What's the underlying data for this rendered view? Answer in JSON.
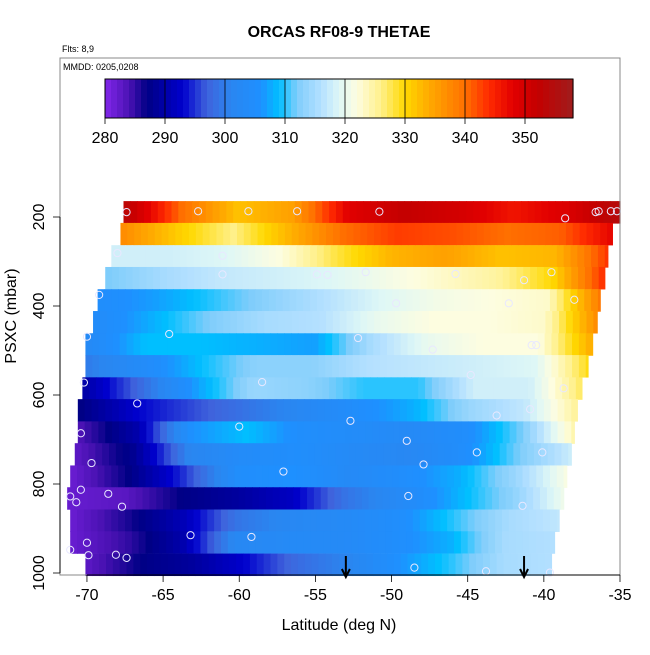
{
  "chart_data": {
    "type": "heatmap",
    "title": "ORCAS RF08-9 THETAE",
    "subtitle_flights": "Flts: 8,9",
    "subtitle_dates": "MMDD: 0205,0208",
    "xlabel": "Latitude (deg N)",
    "ylabel": "PSXC (mbar)",
    "xlim": [
      -71.8,
      -35
    ],
    "ylim": [
      1005,
      -157
    ],
    "x_ticks": [
      "-70",
      "-65",
      "-60",
      "-55",
      "-50",
      "-45",
      "-40",
      "-35"
    ],
    "x_tick_values": [
      -70,
      -65,
      -60,
      -55,
      -50,
      -45,
      -40,
      -35
    ],
    "y_ticks": [
      "200",
      "400",
      "600",
      "800",
      "1000"
    ],
    "y_tick_values": [
      200,
      400,
      600,
      800,
      1000
    ],
    "colorbar": {
      "range": [
        280,
        358
      ],
      "ticks": [
        "280",
        "290",
        "300",
        "310",
        "320",
        "330",
        "340",
        "350"
      ],
      "tick_values": [
        280,
        290,
        300,
        310,
        320,
        330,
        340,
        350
      ],
      "stops": [
        [
          280,
          "#8226ea"
        ],
        [
          284,
          "#4b12b4"
        ],
        [
          287,
          "#000085"
        ],
        [
          293,
          "#0000cd"
        ],
        [
          297,
          "#3f63dc"
        ],
        [
          301,
          "#2a86f0"
        ],
        [
          306,
          "#1e90ff"
        ],
        [
          309,
          "#00bfff"
        ],
        [
          312,
          "#7fcdfb"
        ],
        [
          316,
          "#b4e0ff"
        ],
        [
          319,
          "#def7f6"
        ],
        [
          322,
          "#fdfde0"
        ],
        [
          326,
          "#fff08a"
        ],
        [
          330,
          "#ffd800"
        ],
        [
          334,
          "#ffaa00"
        ],
        [
          340,
          "#ff7000"
        ],
        [
          344,
          "#ff2a00"
        ],
        [
          348,
          "#e20000"
        ],
        [
          352,
          "#c40000"
        ],
        [
          358,
          "#a01c1c"
        ]
      ]
    },
    "layer_thickness_mbar": 49.4,
    "rows": [
      {
        "p": 189,
        "lat": [
          -67.6,
          -35.0
        ],
        "theta": [
          353,
          340,
          332,
          335,
          348,
          352,
          350,
          346,
          349,
          355
        ]
      },
      {
        "p": 238,
        "lat": [
          -67.8,
          -35.5
        ],
        "theta": [
          337,
          331,
          326,
          333,
          340,
          343,
          342,
          340,
          341,
          348
        ]
      },
      {
        "p": 288,
        "lat": [
          -68.4,
          -35.8
        ],
        "theta": [
          318,
          318,
          319,
          322,
          328,
          333,
          335,
          332,
          333,
          344
        ]
      },
      {
        "p": 337,
        "lat": [
          -68.8,
          -36.0
        ],
        "theta": [
          312,
          315,
          317,
          318,
          319,
          321,
          323,
          325,
          330,
          345
        ]
      },
      {
        "p": 387,
        "lat": [
          -69.3,
          -36.3
        ],
        "theta": [
          305,
          307,
          310,
          313,
          316,
          319,
          321,
          322,
          323,
          340
        ]
      },
      {
        "p": 436,
        "lat": [
          -69.6,
          -36.5
        ],
        "theta": [
          304,
          308,
          312,
          315,
          316,
          320,
          322,
          322,
          323,
          338
        ]
      },
      {
        "p": 486,
        "lat": [
          -70.1,
          -36.8
        ],
        "theta": [
          303,
          309,
          309,
          308,
          307,
          315,
          320,
          322,
          322,
          335
        ]
      },
      {
        "p": 535,
        "lat": [
          -70.1,
          -37.1
        ],
        "theta": [
          300,
          304,
          309,
          313,
          313,
          316,
          317,
          318,
          319,
          330
        ]
      },
      {
        "p": 585,
        "lat": [
          -70.3,
          -37.5
        ],
        "theta": [
          290,
          298,
          307,
          314,
          313,
          310,
          310,
          318,
          318,
          328
        ]
      },
      {
        "p": 634,
        "lat": [
          -70.6,
          -37.8
        ],
        "theta": [
          287,
          293,
          296,
          299,
          302,
          305,
          308,
          314,
          317,
          326
        ]
      },
      {
        "p": 684,
        "lat": [
          -70.6,
          -38.0
        ],
        "theta": [
          284,
          290,
          306,
          309,
          305,
          304,
          303,
          305,
          312,
          325
        ]
      },
      {
        "p": 733,
        "lat": [
          -70.8,
          -38.2
        ],
        "theta": [
          283,
          288,
          301,
          304,
          305,
          303,
          302,
          305,
          312,
          318
        ]
      },
      {
        "p": 783,
        "lat": [
          -71.1,
          -38.5
        ],
        "theta": [
          282,
          287,
          295,
          305,
          306,
          303,
          305,
          308,
          314,
          322
        ]
      },
      {
        "p": 832,
        "lat": [
          -71.3,
          -38.7
        ],
        "theta": [
          282,
          283,
          287,
          289,
          292,
          299,
          303,
          308,
          313,
          321
        ]
      },
      {
        "p": 882,
        "lat": [
          -71.1,
          -39.0
        ],
        "theta": [
          282,
          286,
          291,
          299,
          302,
          303,
          305,
          310,
          315,
          317
        ]
      },
      {
        "p": 931,
        "lat": [
          -71.1,
          -39.3
        ],
        "theta": [
          282,
          285,
          290,
          302,
          303,
          303,
          305,
          308,
          315,
          316
        ]
      },
      {
        "p": 981,
        "lat": [
          -70.1,
          -39.5
        ],
        "theta": [
          283,
          287,
          289,
          293,
          298,
          301,
          306,
          310,
          315,
          316
        ]
      }
    ],
    "flight_points": [
      [
        -67.4,
        189
      ],
      [
        -62.7,
        187
      ],
      [
        -59.4,
        187
      ],
      [
        -56.2,
        187
      ],
      [
        -50.8,
        188
      ],
      [
        -38.6,
        203
      ],
      [
        -36.6,
        189
      ],
      [
        -36.4,
        187
      ],
      [
        -35.6,
        187
      ],
      [
        -35.2,
        187
      ],
      [
        -68.0,
        281
      ],
      [
        -61.1,
        287
      ],
      [
        -61.1,
        329
      ],
      [
        -54.9,
        329
      ],
      [
        -54.2,
        330
      ],
      [
        -51.7,
        324
      ],
      [
        -45.8,
        328
      ],
      [
        -41.3,
        342
      ],
      [
        -39.5,
        324
      ],
      [
        -69.2,
        375
      ],
      [
        -49.7,
        394
      ],
      [
        -42.3,
        394
      ],
      [
        -38.0,
        386
      ],
      [
        -70.0,
        469
      ],
      [
        -64.6,
        463
      ],
      [
        -52.2,
        472
      ],
      [
        -47.3,
        498
      ],
      [
        -40.8,
        488
      ],
      [
        -40.5,
        488
      ],
      [
        -44.8,
        555
      ],
      [
        -70.2,
        572
      ],
      [
        -58.5,
        571
      ],
      [
        -38.7,
        585
      ],
      [
        -66.7,
        619
      ],
      [
        -43.1,
        646
      ],
      [
        -40.9,
        632
      ],
      [
        -52.7,
        658
      ],
      [
        -60.0,
        671
      ],
      [
        -70.4,
        686
      ],
      [
        -49.0,
        703
      ],
      [
        -44.4,
        729
      ],
      [
        -40.1,
        729
      ],
      [
        -69.7,
        753
      ],
      [
        -47.9,
        756
      ],
      [
        -57.1,
        772
      ],
      [
        -70.4,
        813
      ],
      [
        -68.6,
        822
      ],
      [
        -71.1,
        828
      ],
      [
        -70.7,
        841
      ],
      [
        -67.7,
        851
      ],
      [
        -48.9,
        827
      ],
      [
        -41.4,
        849
      ],
      [
        -63.2,
        915
      ],
      [
        -59.2,
        919
      ],
      [
        -70.0,
        932
      ],
      [
        -71.1,
        948
      ],
      [
        -69.9,
        960
      ],
      [
        -68.1,
        959
      ],
      [
        -67.4,
        966
      ],
      [
        -48.5,
        988
      ],
      [
        -43.8,
        996
      ],
      [
        -39.6,
        999
      ]
    ],
    "arrows_lat": [
      -53.0,
      -41.3
    ]
  }
}
